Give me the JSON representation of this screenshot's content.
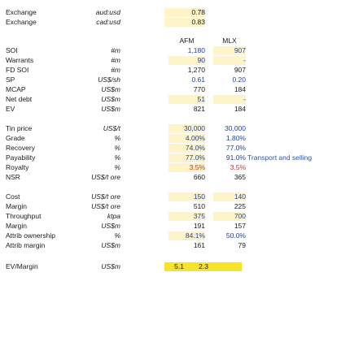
{
  "fx": [
    {
      "label": "Exchange",
      "unit": "aud:usd",
      "value": "0.78"
    },
    {
      "label": "Exchange",
      "unit": "cad:usd",
      "value": "0.83"
    }
  ],
  "headers": {
    "afm": "AFM",
    "mlx": "MLX"
  },
  "capital": [
    {
      "label": "SOI",
      "unit": "#m",
      "afm": "1,180",
      "mlx": "907"
    },
    {
      "label": "Warrants",
      "unit": "#m",
      "afm": "90",
      "mlx": "-"
    },
    {
      "label": "FD SOI",
      "unit": "#m",
      "afm": "1,270",
      "mlx": "907"
    },
    {
      "label": "SP",
      "unit": "US$/sh",
      "afm": "0.61",
      "mlx": "0.20"
    },
    {
      "label": "MCAP",
      "unit": "US$m",
      "afm": "770",
      "mlx": "184"
    },
    {
      "label": "Net debt",
      "unit": "US$m",
      "afm": "51",
      "mlx": "-"
    },
    {
      "label": "EV",
      "unit": "US$m",
      "afm": "821",
      "mlx": "184"
    }
  ],
  "economics": [
    {
      "label": "Tin price",
      "unit": "US$/t",
      "afm": "30,000",
      "mlx": "30,000"
    },
    {
      "label": "Grade",
      "unit": "%",
      "afm": "4.00%",
      "mlx": "1.80%"
    },
    {
      "label": "Recovery",
      "unit": "%",
      "afm": "74.0%",
      "mlx": "77.0%"
    },
    {
      "label": "Payability",
      "unit": "%",
      "afm": "77.0%",
      "mlx": "91.0%",
      "note": "Transport and selling"
    },
    {
      "label": "Royalty",
      "unit": "%",
      "afm": "3.5%",
      "mlx": "3.5%"
    },
    {
      "label": "NSR",
      "unit": "US$/t ore",
      "afm": "660",
      "mlx": "365"
    }
  ],
  "margins": [
    {
      "label": "Cost",
      "unit": "US$/t ore",
      "afm": "150",
      "mlx": "140"
    },
    {
      "label": "Margin",
      "unit": "US$/t ore",
      "afm": "510",
      "mlx": "225"
    },
    {
      "label": "Throughput",
      "unit": "ktpa",
      "afm": "375",
      "mlx": "700"
    },
    {
      "label": "Margin",
      "unit": "US$m",
      "afm": "191",
      "mlx": "157"
    },
    {
      "label": "Attrib ownership",
      "unit": "%",
      "afm": "84.1%",
      "mlx": "50.0%"
    },
    {
      "label": "Attrib margin",
      "unit": "US$m",
      "afm": "161",
      "mlx": "79"
    }
  ],
  "ev_margin": {
    "label": "EV/Margin",
    "unit": "US$m",
    "afm": "5.1",
    "mlx": "2.3"
  }
}
